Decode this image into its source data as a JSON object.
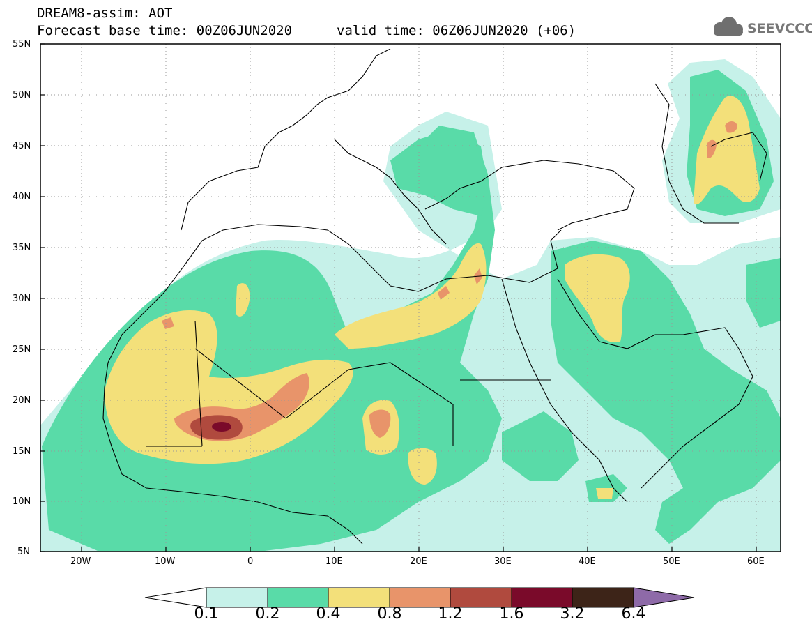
{
  "header": {
    "title": "DREAM8-assim: AOT",
    "base_time": "Forecast base time: 00Z06JUN2020",
    "valid_time": "valid time: 06Z06JUN2020 (+06)",
    "logo": "SEEVCCC"
  },
  "map": {
    "extent": {
      "lon": [
        -25,
        65
      ],
      "lat": [
        5,
        55
      ]
    },
    "lat_labels": [
      "5N",
      "10N",
      "15N",
      "20N",
      "25N",
      "30N",
      "35N",
      "40N",
      "45N",
      "50N",
      "55N"
    ],
    "lon_labels": [
      "20W",
      "10W",
      "0",
      "10E",
      "20E",
      "30E",
      "40E",
      "50E",
      "60E"
    ]
  },
  "colorbar": {
    "labels": [
      "0.1",
      "0.2",
      "0.4",
      "0.8",
      "1.2",
      "1.6",
      "3.2",
      "6.4"
    ],
    "colors": [
      "#c6f1e9",
      "#59dba8",
      "#f3e07a",
      "#e8946a",
      "#b04a3e",
      "#7a0a2a",
      "#3d2418",
      "#8e6aa8"
    ]
  }
}
